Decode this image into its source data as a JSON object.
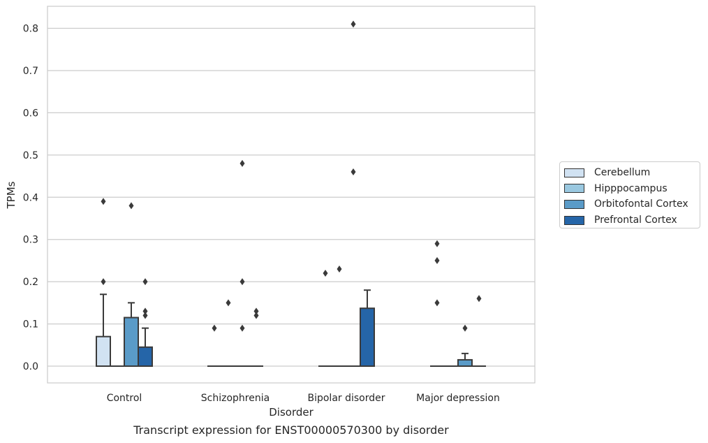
{
  "chart_data": {
    "type": "bar",
    "xlabel": "Disorder",
    "ylabel": "TPMs",
    "ylim": [
      -0.04,
      0.85
    ],
    "yticks": [
      0.0,
      0.1,
      0.2,
      0.3,
      0.4,
      0.5,
      0.6,
      0.7,
      0.8
    ],
    "grid": true,
    "legend_position": "right",
    "categories": [
      "Control",
      "Schizophrenia",
      "Bipolar disorder",
      "Major depression"
    ],
    "series": [
      {
        "name": "Cerebellum",
        "color": "#d1e2f2",
        "values": [
          0.07,
          0.0,
          0.0,
          0.0
        ],
        "upper_whiskers": [
          0.17,
          null,
          null,
          null
        ],
        "outliers": [
          [
            0.2,
            0.39
          ],
          [
            0.09
          ],
          [
            0.22
          ],
          [
            0.15,
            0.25,
            0.29
          ]
        ]
      },
      {
        "name": "Hipppocampus",
        "color": "#9ac8e0",
        "values": [
          0.0,
          0.0,
          0.0,
          0.0
        ],
        "upper_whiskers": [
          null,
          null,
          null,
          null
        ],
        "outliers": [
          [],
          [
            0.15
          ],
          [
            0.23
          ],
          []
        ]
      },
      {
        "name": "Orbitofontal Cortex",
        "color": "#5a9bc8",
        "values": [
          0.115,
          0.0,
          0.0,
          0.015
        ],
        "upper_whiskers": [
          0.15,
          null,
          null,
          0.03
        ],
        "outliers": [
          [
            0.38
          ],
          [
            0.09,
            0.2,
            0.48
          ],
          [
            0.46,
            0.81
          ],
          [
            0.09
          ]
        ]
      },
      {
        "name": "Prefrontal Cortex",
        "color": "#2565a8",
        "values": [
          0.045,
          0.0,
          0.137,
          0.0
        ],
        "upper_whiskers": [
          0.09,
          null,
          0.18,
          null
        ],
        "outliers": [
          [
            0.12,
            0.13,
            0.2
          ],
          [
            0.12,
            0.13
          ],
          [],
          [
            0.16
          ]
        ]
      }
    ]
  },
  "caption": "Transcript expression for ENST00000570300 by disorder"
}
